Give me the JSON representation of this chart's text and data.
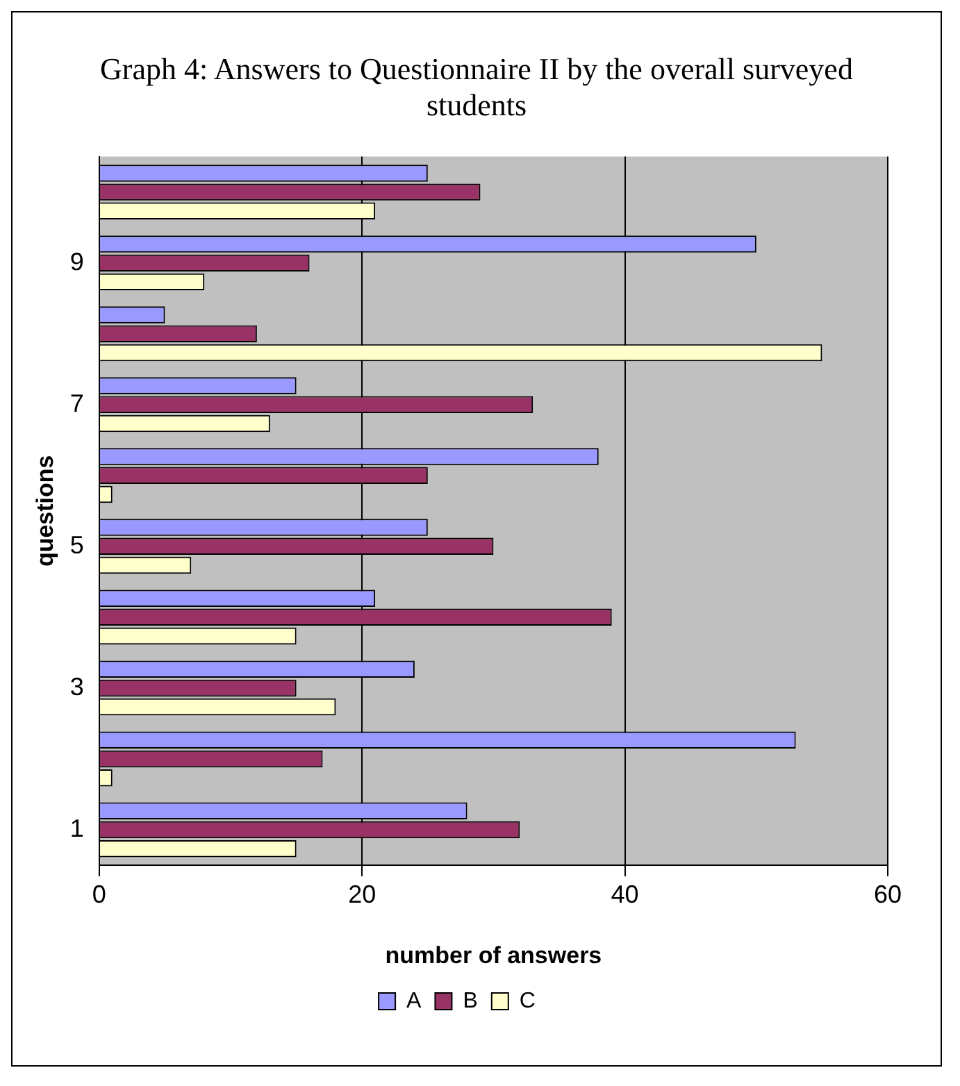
{
  "chart_data": {
    "type": "bar",
    "orientation": "horizontal",
    "title": "Graph 4: Answers to Questionnaire II by the overall surveyed students",
    "xlabel": "number of answers",
    "ylabel": "questions",
    "categories": [
      null,
      "9",
      null,
      "7",
      null,
      "5",
      null,
      "3",
      null,
      "1"
    ],
    "series": [
      {
        "name": "A",
        "color": "#9999ff",
        "values": [
          25,
          50,
          5,
          15,
          38,
          25,
          21,
          24,
          53,
          28
        ]
      },
      {
        "name": "B",
        "color": "#993366",
        "values": [
          29,
          16,
          12,
          33,
          25,
          30,
          39,
          15,
          17,
          32
        ]
      },
      {
        "name": "C",
        "color": "#ffffcc",
        "values": [
          21,
          8,
          55,
          13,
          1,
          7,
          15,
          18,
          1,
          15
        ]
      }
    ],
    "xlim": [
      0,
      60
    ],
    "xticks": [
      0,
      20,
      40,
      60
    ],
    "grid": "x",
    "legend": "bottom"
  }
}
